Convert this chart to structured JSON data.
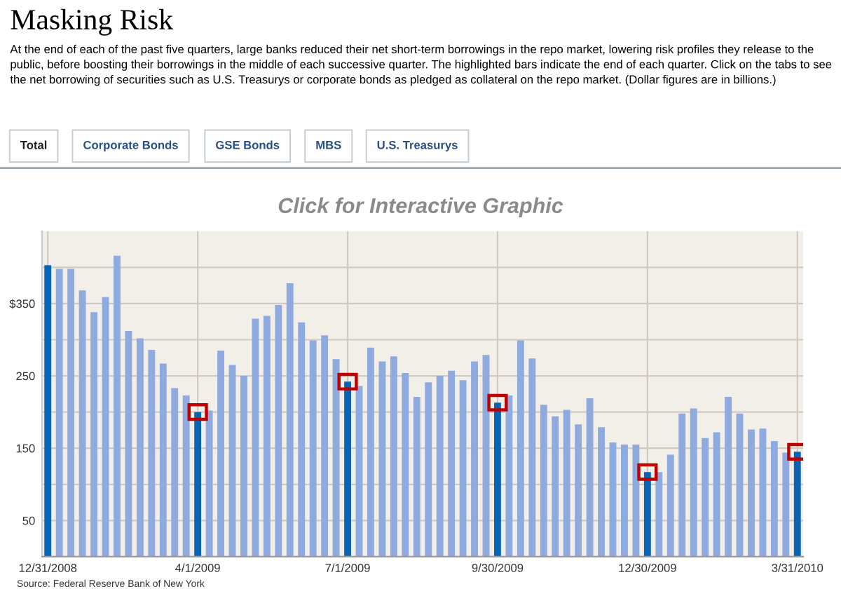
{
  "chart_data": {
    "type": "bar",
    "title": "Masking Risk",
    "subtitle": "At the end of each of the past five quarters, large banks reduced their net short-term borrowings in the repo market, lowering risk profiles they release to the public, before boosting their borrowings in the middle of each successive quarter. The highlighted bars indicate the end of each quarter. Click on the tabs to see the net borrowing of securities such as U.S. Treasurys or corporate bonds as pledged as collateral on the repo market. (Dollar figures are in billions.)",
    "annotations": [
      "Total",
      "Corporate Bonds",
      "GSE Bonds",
      "MBS",
      "U.S. Treasurys",
      "Click for Interactive Graphic",
      "Source: Federal Reserve Bank of New York"
    ],
    "categories": [
      "12/31/2008",
      null,
      null,
      null,
      null,
      null,
      null,
      null,
      null,
      null,
      null,
      null,
      null,
      "4/1/2009",
      null,
      null,
      null,
      null,
      null,
      null,
      null,
      null,
      null,
      null,
      null,
      null,
      "7/1/2009",
      null,
      null,
      null,
      null,
      null,
      null,
      null,
      null,
      null,
      null,
      null,
      null,
      "9/30/2009",
      null,
      null,
      null,
      null,
      null,
      null,
      null,
      null,
      null,
      null,
      null,
      null,
      "12/30/2009",
      null,
      null,
      null,
      null,
      null,
      null,
      null,
      null,
      null,
      null,
      null,
      null,
      "3/31/2010"
    ],
    "values": [
      403,
      398,
      398,
      368,
      338,
      359,
      416,
      312,
      302,
      286,
      267,
      233,
      223,
      200,
      202,
      285,
      265,
      250,
      329,
      333,
      348,
      378,
      324,
      299,
      306,
      273,
      242,
      236,
      289,
      270,
      277,
      254,
      221,
      241,
      250,
      257,
      244,
      270,
      279,
      213,
      223,
      299,
      274,
      210,
      194,
      203,
      183,
      219,
      179,
      158,
      155,
      155,
      117,
      117,
      141,
      198,
      205,
      164,
      172,
      221,
      198,
      176,
      177,
      160,
      144,
      145
    ],
    "colors": [
      "#0a64b4",
      "#8eaadf",
      "#8eaadf",
      "#8eaadf",
      "#8eaadf",
      "#8eaadf",
      "#8eaadf",
      "#8eaadf",
      "#8eaadf",
      "#8eaadf",
      "#8eaadf",
      "#8eaadf",
      "#8eaadf",
      "#0a64b4",
      "#8eaadf",
      "#8eaadf",
      "#8eaadf",
      "#8eaadf",
      "#8eaadf",
      "#8eaadf",
      "#8eaadf",
      "#8eaadf",
      "#8eaadf",
      "#8eaadf",
      "#8eaadf",
      "#8eaadf",
      "#0a64b4",
      "#8eaadf",
      "#8eaadf",
      "#8eaadf",
      "#8eaadf",
      "#8eaadf",
      "#8eaadf",
      "#8eaadf",
      "#8eaadf",
      "#8eaadf",
      "#8eaadf",
      "#8eaadf",
      "#8eaadf",
      "#0a64b4",
      "#8eaadf",
      "#8eaadf",
      "#8eaadf",
      "#8eaadf",
      "#8eaadf",
      "#8eaadf",
      "#8eaadf",
      "#8eaadf",
      "#8eaadf",
      "#8eaadf",
      "#8eaadf",
      "#8eaadf",
      "#0a64b4",
      "#8eaadf",
      "#8eaadf",
      "#8eaadf",
      "#8eaadf",
      "#8eaadf",
      "#8eaadf",
      "#8eaadf",
      "#8eaadf",
      "#8eaadf",
      "#8eaadf",
      "#8eaadf",
      "#8eaadf",
      "#0a64b4"
    ],
    "ylim": [
      0,
      450
    ],
    "yticks": [
      50,
      {
        "value": 100,
        "label": null
      },
      150,
      {
        "value": 200,
        "label": null
      },
      250,
      {
        "value": 300,
        "label": null
      },
      {
        "value": 350,
        "label": "$350"
      },
      {
        "value": 400,
        "label": null
      }
    ],
    "grid": true
  }
}
